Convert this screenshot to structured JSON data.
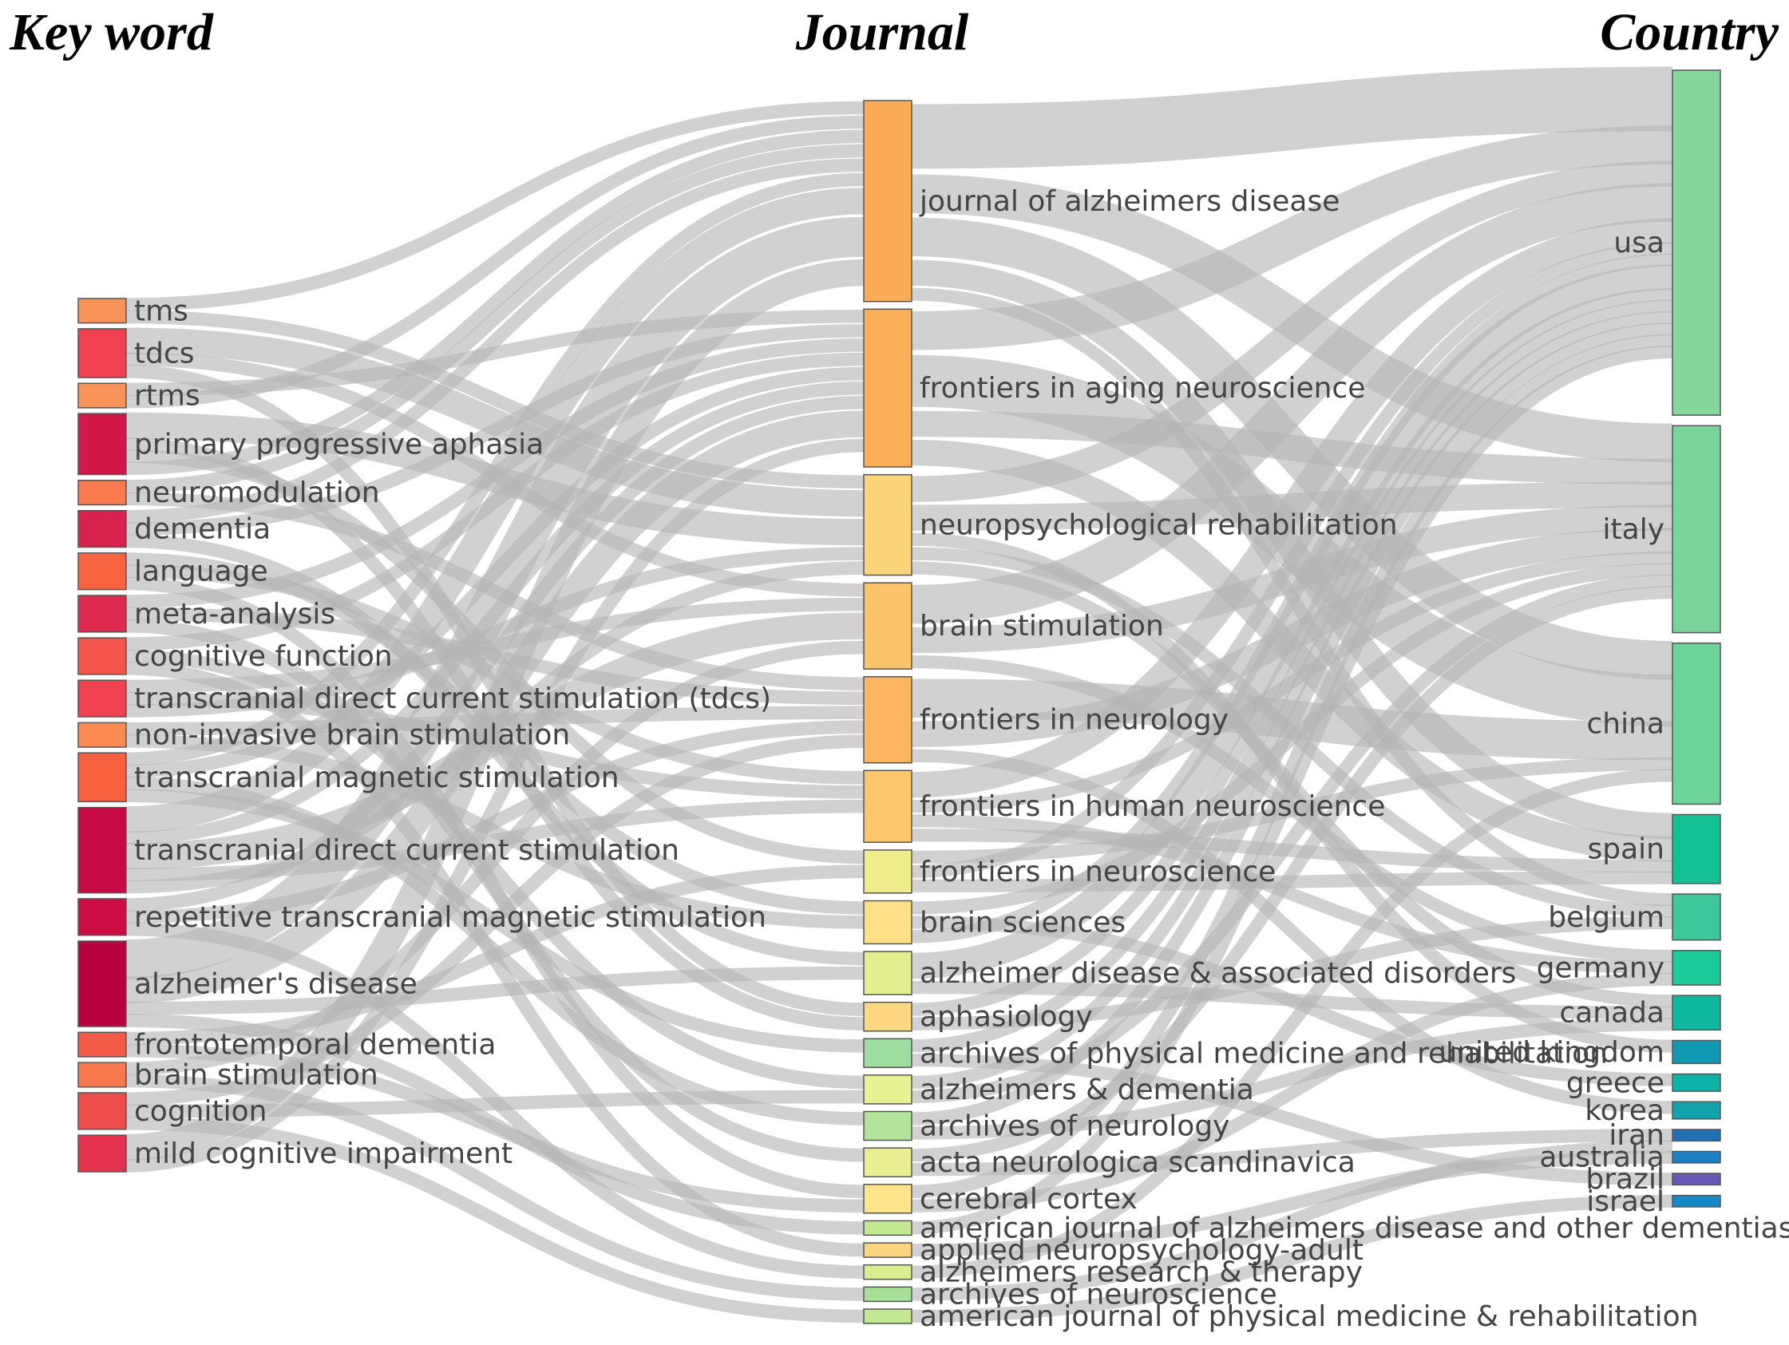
{
  "headings": {
    "keyword": "Key word",
    "journal": "Journal",
    "country": "Country"
  },
  "chart_data": {
    "type": "sankey",
    "columns": [
      "Key word",
      "Journal",
      "Country"
    ],
    "keywords": [
      {
        "id": "tms",
        "label": "tms",
        "weight": 2,
        "color": "#f9935a"
      },
      {
        "id": "tdcs",
        "label": "tdcs",
        "weight": 4,
        "color": "#f1404f"
      },
      {
        "id": "rtms",
        "label": "rtms",
        "weight": 2,
        "color": "#f9935a"
      },
      {
        "id": "ppa",
        "label": "primary progressive aphasia",
        "weight": 5,
        "color": "#d2164a"
      },
      {
        "id": "neuromod",
        "label": "neuromodulation",
        "weight": 2,
        "color": "#f97a4e"
      },
      {
        "id": "dementia",
        "label": "dementia",
        "weight": 3,
        "color": "#d8214c"
      },
      {
        "id": "language",
        "label": "language",
        "weight": 3,
        "color": "#f8643f"
      },
      {
        "id": "meta",
        "label": "meta-analysis",
        "weight": 3,
        "color": "#dd2a4e"
      },
      {
        "id": "cogfunc",
        "label": "cognitive function",
        "weight": 3,
        "color": "#f5554b"
      },
      {
        "id": "tdcs2",
        "label": "transcranial direct current stimulation (tdcs)",
        "weight": 3,
        "color": "#f1404f"
      },
      {
        "id": "nibs",
        "label": "non-invasive brain stimulation",
        "weight": 2,
        "color": "#f98b53"
      },
      {
        "id": "tmsfull",
        "label": "transcranial magnetic stimulation",
        "weight": 4,
        "color": "#f8613f"
      },
      {
        "id": "tdcsfull",
        "label": "transcranial direct current stimulation",
        "weight": 7,
        "color": "#c70a45"
      },
      {
        "id": "rtmsfull",
        "label": "repetitive transcranial magnetic stimulation",
        "weight": 3,
        "color": "#cd0e45"
      },
      {
        "id": "ad",
        "label": "alzheimer's disease",
        "weight": 7,
        "color": "#b8003e"
      },
      {
        "id": "ftd",
        "label": "frontotemporal dementia",
        "weight": 2,
        "color": "#f55a46"
      },
      {
        "id": "brainstim",
        "label": "brain stimulation",
        "weight": 2,
        "color": "#f8784f"
      },
      {
        "id": "cognition",
        "label": "cognition",
        "weight": 3,
        "color": "#f04d4d"
      },
      {
        "id": "mci",
        "label": "mild cognitive impairment",
        "weight": 3,
        "color": "#e5324f"
      }
    ],
    "journals": [
      {
        "id": "jad",
        "label": "journal of alzheimers disease",
        "weight": 14,
        "color": "#fdab55"
      },
      {
        "id": "fan",
        "label": "frontiers in aging neuroscience",
        "weight": 11,
        "color": "#fdae58"
      },
      {
        "id": "npr",
        "label": "neuropsychological rehabilitation",
        "weight": 7,
        "color": "#fed47a"
      },
      {
        "id": "bs",
        "label": "brain stimulation",
        "weight": 6,
        "color": "#fdc46a"
      },
      {
        "id": "fin",
        "label": "frontiers in neurology",
        "weight": 6,
        "color": "#fdb660"
      },
      {
        "id": "fhn",
        "label": "frontiers in human neuroscience",
        "weight": 5,
        "color": "#fdc86c"
      },
      {
        "id": "fns",
        "label": "frontiers in neuroscience",
        "weight": 3,
        "color": "#eeee8c"
      },
      {
        "id": "bsc",
        "label": "brain sciences",
        "weight": 3,
        "color": "#fee187"
      },
      {
        "id": "adad",
        "label": "alzheimer disease & associated disorders",
        "weight": 3,
        "color": "#e3ef8e"
      },
      {
        "id": "aph",
        "label": "aphasiology",
        "weight": 2,
        "color": "#fed982"
      },
      {
        "id": "apmr",
        "label": "archives of physical medicine and rehabilitation",
        "weight": 2,
        "color": "#9edca0"
      },
      {
        "id": "ad2",
        "label": "alzheimers & dementia",
        "weight": 2,
        "color": "#e6f293"
      },
      {
        "id": "aneur",
        "label": "archives of neurology",
        "weight": 2,
        "color": "#b2e49b"
      },
      {
        "id": "ans",
        "label": "acta neurologica scandinavica",
        "weight": 2,
        "color": "#e9ee90"
      },
      {
        "id": "cc",
        "label": "cerebral cortex",
        "weight": 2,
        "color": "#fee58a"
      },
      {
        "id": "ajad",
        "label": "american journal of alzheimers disease and other dementias",
        "weight": 1,
        "color": "#c5e993"
      },
      {
        "id": "anpa",
        "label": "applied neuropsychology-adult",
        "weight": 1,
        "color": "#fed67f"
      },
      {
        "id": "art",
        "label": "alzheimers research & therapy",
        "weight": 1,
        "color": "#d9ef8f"
      },
      {
        "id": "ansc",
        "label": "archives of neuroscience",
        "weight": 1,
        "color": "#a7df99"
      },
      {
        "id": "ajpmr",
        "label": "american journal of physical medicine & rehabilitation",
        "weight": 1,
        "color": "#c4e794"
      }
    ],
    "countries": [
      {
        "id": "usa",
        "label": "usa",
        "weight": 30,
        "color": "#86d79c"
      },
      {
        "id": "italy",
        "label": "italy",
        "weight": 18,
        "color": "#78d49a"
      },
      {
        "id": "china",
        "label": "china",
        "weight": 14,
        "color": "#6dd49b"
      },
      {
        "id": "spain",
        "label": "spain",
        "weight": 6,
        "color": "#13c293"
      },
      {
        "id": "belgium",
        "label": "belgium",
        "weight": 4,
        "color": "#3dc79a"
      },
      {
        "id": "germany",
        "label": "germany",
        "weight": 3,
        "color": "#1bc999"
      },
      {
        "id": "canada",
        "label": "canada",
        "weight": 3,
        "color": "#0fb9a0"
      },
      {
        "id": "uk",
        "label": "united kingdom",
        "weight": 2,
        "color": "#1299b2"
      },
      {
        "id": "greece",
        "label": "greece",
        "weight": 1.5,
        "color": "#0eb1a6"
      },
      {
        "id": "korea",
        "label": "korea",
        "weight": 1.5,
        "color": "#11a2ad"
      },
      {
        "id": "iran",
        "label": "iran",
        "weight": 1,
        "color": "#1f70b6"
      },
      {
        "id": "australia",
        "label": "australia",
        "weight": 1,
        "color": "#1c7ec3"
      },
      {
        "id": "brazil",
        "label": "brazil",
        "weight": 1,
        "color": "#6757b8"
      },
      {
        "id": "israel",
        "label": "israel",
        "weight": 1,
        "color": "#1789c6"
      }
    ],
    "flows_keyword_journal": [
      [
        "tms",
        "jad",
        1
      ],
      [
        "tms",
        "npr",
        1
      ],
      [
        "tdcs",
        "npr",
        2
      ],
      [
        "tdcs",
        "bs",
        1
      ],
      [
        "tdcs",
        "aph",
        1
      ],
      [
        "rtms",
        "fan",
        1
      ],
      [
        "rtms",
        "jad",
        1
      ],
      [
        "ppa",
        "npr",
        2
      ],
      [
        "ppa",
        "aph",
        1
      ],
      [
        "ppa",
        "fns",
        1
      ],
      [
        "ppa",
        "jad",
        1
      ],
      [
        "neuromod",
        "jad",
        1
      ],
      [
        "neuromod",
        "fin",
        1
      ],
      [
        "dementia",
        "jad",
        1
      ],
      [
        "dementia",
        "fan",
        1
      ],
      [
        "dementia",
        "adad",
        1
      ],
      [
        "language",
        "bsc",
        1
      ],
      [
        "language",
        "fhn",
        1
      ],
      [
        "language",
        "cc",
        1
      ],
      [
        "meta",
        "fan",
        1
      ],
      [
        "meta",
        "fin",
        1
      ],
      [
        "meta",
        "ans",
        1
      ],
      [
        "cogfunc",
        "fan",
        1
      ],
      [
        "cogfunc",
        "ad2",
        1
      ],
      [
        "cogfunc",
        "anpa",
        1
      ],
      [
        "tdcs2",
        "bs",
        1
      ],
      [
        "tdcs2",
        "fhn",
        1
      ],
      [
        "tdcs2",
        "npr",
        1
      ],
      [
        "nibs",
        "fin",
        1
      ],
      [
        "nibs",
        "bsc",
        1
      ],
      [
        "tmsfull",
        "jad",
        1
      ],
      [
        "tmsfull",
        "fan",
        1
      ],
      [
        "tmsfull",
        "aneur",
        1
      ],
      [
        "tmsfull",
        "apmr",
        1
      ],
      [
        "tdcsfull",
        "jad",
        2
      ],
      [
        "tdcsfull",
        "fan",
        1
      ],
      [
        "tdcsfull",
        "bs",
        2
      ],
      [
        "tdcsfull",
        "fhn",
        1
      ],
      [
        "tdcsfull",
        "npr",
        1
      ],
      [
        "rtmsfull",
        "fan",
        1
      ],
      [
        "rtmsfull",
        "fin",
        1
      ],
      [
        "rtmsfull",
        "art",
        1
      ],
      [
        "ad",
        "jad",
        3
      ],
      [
        "ad",
        "fan",
        2
      ],
      [
        "ad",
        "adad",
        1
      ],
      [
        "ad",
        "ajad",
        1
      ],
      [
        "ftd",
        "fns",
        1
      ],
      [
        "ftd",
        "cc",
        1
      ],
      [
        "brainstim",
        "bs",
        1
      ],
      [
        "brainstim",
        "ansc",
        1
      ],
      [
        "cognition",
        "fin",
        1
      ],
      [
        "cognition",
        "ad2",
        1
      ],
      [
        "cognition",
        "ajpmr",
        1
      ],
      [
        "mci",
        "jad",
        2
      ],
      [
        "mci",
        "fan",
        1
      ]
    ],
    "flows_journal_country": [
      [
        "jad",
        "usa",
        5
      ],
      [
        "jad",
        "italy",
        3
      ],
      [
        "jad",
        "china",
        3
      ],
      [
        "jad",
        "spain",
        2
      ],
      [
        "jad",
        "belgium",
        1
      ],
      [
        "fan",
        "usa",
        3
      ],
      [
        "fan",
        "china",
        4
      ],
      [
        "fan",
        "italy",
        2
      ],
      [
        "fan",
        "spain",
        2
      ],
      [
        "npr",
        "usa",
        2
      ],
      [
        "npr",
        "italy",
        2
      ],
      [
        "npr",
        "uk",
        1
      ],
      [
        "npr",
        "belgium",
        1
      ],
      [
        "npr",
        "canada",
        1
      ],
      [
        "bs",
        "usa",
        3
      ],
      [
        "bs",
        "italy",
        2
      ],
      [
        "bs",
        "germany",
        1
      ],
      [
        "fin",
        "china",
        3
      ],
      [
        "fin",
        "italy",
        2
      ],
      [
        "fin",
        "korea",
        1
      ],
      [
        "fhn",
        "usa",
        2
      ],
      [
        "fhn",
        "italy",
        1
      ],
      [
        "fhn",
        "germany",
        1
      ],
      [
        "fhn",
        "spain",
        1
      ],
      [
        "fns",
        "china",
        1
      ],
      [
        "fns",
        "usa",
        1
      ],
      [
        "fns",
        "spain",
        1
      ],
      [
        "bsc",
        "italy",
        1
      ],
      [
        "bsc",
        "greece",
        1
      ],
      [
        "bsc",
        "usa",
        1
      ],
      [
        "adad",
        "usa",
        2
      ],
      [
        "adad",
        "canada",
        1
      ],
      [
        "aph",
        "usa",
        1
      ],
      [
        "aph",
        "belgium",
        1
      ],
      [
        "apmr",
        "usa",
        1
      ],
      [
        "apmr",
        "brazil",
        1
      ],
      [
        "ad2",
        "usa",
        1
      ],
      [
        "ad2",
        "italy",
        1
      ],
      [
        "aneur",
        "usa",
        1
      ],
      [
        "aneur",
        "canada",
        1
      ],
      [
        "ans",
        "italy",
        1
      ],
      [
        "ans",
        "iran",
        1
      ],
      [
        "cc",
        "usa",
        1
      ],
      [
        "cc",
        "germany",
        1
      ],
      [
        "ajad",
        "usa",
        1
      ],
      [
        "anpa",
        "australia",
        1
      ],
      [
        "art",
        "china",
        1
      ],
      [
        "ansc",
        "iran",
        1
      ],
      [
        "ajpmr",
        "israel",
        1
      ]
    ]
  }
}
